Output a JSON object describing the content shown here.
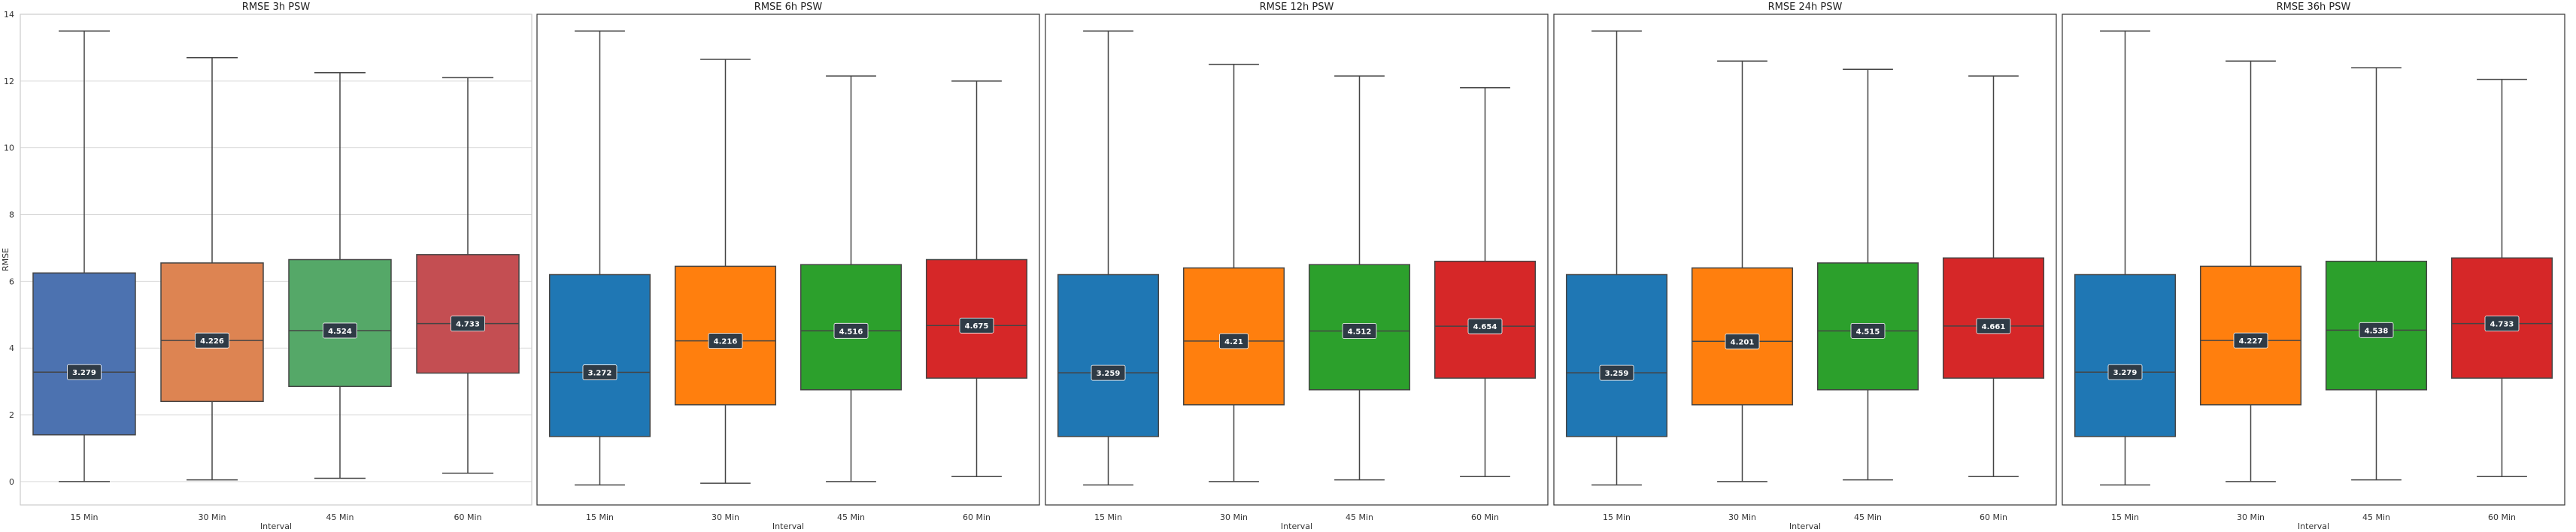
{
  "chart_data": [
    {
      "type": "boxplot",
      "title": "RMSE 3h PSW",
      "xlabel": "Interval",
      "ylabel": "RMSE",
      "ylim": [
        -0.7,
        14.0
      ],
      "yticks": [
        "0",
        "2",
        "4",
        "6",
        "8",
        "10",
        "12",
        "14"
      ],
      "categories": [
        "15 Min",
        "30 Min",
        "45 Min",
        "60 Min"
      ],
      "colors": [
        "#4c72b0",
        "#dd8452",
        "#55a868",
        "#c44e52"
      ],
      "boxes": [
        {
          "whislo": 0.0,
          "q1": 1.4,
          "med": 3.279,
          "q3": 6.25,
          "whishi": 13.5,
          "label": "3.279"
        },
        {
          "whislo": 0.05,
          "q1": 2.4,
          "med": 4.226,
          "q3": 6.55,
          "whishi": 12.7,
          "label": "4.226"
        },
        {
          "whislo": 0.1,
          "q1": 2.85,
          "med": 4.524,
          "q3": 6.65,
          "whishi": 12.25,
          "label": "4.524"
        },
        {
          "whislo": 0.25,
          "q1": 3.25,
          "med": 4.733,
          "q3": 6.8,
          "whishi": 12.1,
          "label": "4.733"
        }
      ]
    },
    {
      "type": "boxplot",
      "title": "RMSE 6h PSW",
      "xlabel": "Interval",
      "ylabel": "",
      "ylim": [
        -0.7,
        14.0
      ],
      "yticks": [],
      "categories": [
        "15 Min",
        "30 Min",
        "45 Min",
        "60 Min"
      ],
      "colors": [
        "#1f77b4",
        "#ff7f0e",
        "#2ca02c",
        "#d62728"
      ],
      "boxes": [
        {
          "whislo": -0.1,
          "q1": 1.35,
          "med": 3.272,
          "q3": 6.2,
          "whishi": 13.5,
          "label": "3.272"
        },
        {
          "whislo": -0.05,
          "q1": 2.3,
          "med": 4.216,
          "q3": 6.45,
          "whishi": 12.65,
          "label": "4.216"
        },
        {
          "whislo": 0.0,
          "q1": 2.75,
          "med": 4.516,
          "q3": 6.5,
          "whishi": 12.15,
          "label": "4.516"
        },
        {
          "whislo": 0.15,
          "q1": 3.1,
          "med": 4.675,
          "q3": 6.65,
          "whishi": 12.0,
          "label": "4.675"
        }
      ]
    },
    {
      "type": "boxplot",
      "title": "RMSE 12h PSW",
      "xlabel": "Interval",
      "ylabel": "",
      "ylim": [
        -0.7,
        14.0
      ],
      "yticks": [],
      "categories": [
        "15 Min",
        "30 Min",
        "45 Min",
        "60 Min"
      ],
      "colors": [
        "#1f77b4",
        "#ff7f0e",
        "#2ca02c",
        "#d62728"
      ],
      "boxes": [
        {
          "whislo": -0.1,
          "q1": 1.35,
          "med": 3.259,
          "q3": 6.2,
          "whishi": 13.5,
          "label": "3.259"
        },
        {
          "whislo": 0.0,
          "q1": 2.3,
          "med": 4.21,
          "q3": 6.4,
          "whishi": 12.5,
          "label": "4.21"
        },
        {
          "whislo": 0.05,
          "q1": 2.75,
          "med": 4.512,
          "q3": 6.5,
          "whishi": 12.15,
          "label": "4.512"
        },
        {
          "whislo": 0.15,
          "q1": 3.1,
          "med": 4.654,
          "q3": 6.6,
          "whishi": 11.8,
          "label": "4.654"
        }
      ]
    },
    {
      "type": "boxplot",
      "title": "RMSE 24h PSW",
      "xlabel": "Interval",
      "ylabel": "",
      "ylim": [
        -0.7,
        14.0
      ],
      "yticks": [],
      "categories": [
        "15 Min",
        "30 Min",
        "45 Min",
        "60 Min"
      ],
      "colors": [
        "#1f77b4",
        "#ff7f0e",
        "#2ca02c",
        "#d62728"
      ],
      "boxes": [
        {
          "whislo": -0.1,
          "q1": 1.35,
          "med": 3.259,
          "q3": 6.2,
          "whishi": 13.5,
          "label": "3.259"
        },
        {
          "whislo": 0.0,
          "q1": 2.3,
          "med": 4.201,
          "q3": 6.4,
          "whishi": 12.6,
          "label": "4.201"
        },
        {
          "whislo": 0.05,
          "q1": 2.75,
          "med": 4.515,
          "q3": 6.55,
          "whishi": 12.35,
          "label": "4.515"
        },
        {
          "whislo": 0.15,
          "q1": 3.1,
          "med": 4.661,
          "q3": 6.7,
          "whishi": 12.15,
          "label": "4.661"
        }
      ]
    },
    {
      "type": "boxplot",
      "title": "RMSE 36h PSW",
      "xlabel": "Interval",
      "ylabel": "",
      "ylim": [
        -0.7,
        14.0
      ],
      "yticks": [],
      "categories": [
        "15 Min",
        "30 Min",
        "45 Min",
        "60 Min"
      ],
      "colors": [
        "#1f77b4",
        "#ff7f0e",
        "#2ca02c",
        "#d62728"
      ],
      "boxes": [
        {
          "whislo": -0.1,
          "q1": 1.35,
          "med": 3.279,
          "q3": 6.2,
          "whishi": 13.5,
          "label": "3.279"
        },
        {
          "whislo": 0.0,
          "q1": 2.3,
          "med": 4.227,
          "q3": 6.45,
          "whishi": 12.6,
          "label": "4.227"
        },
        {
          "whislo": 0.05,
          "q1": 2.75,
          "med": 4.538,
          "q3": 6.6,
          "whishi": 12.4,
          "label": "4.538"
        },
        {
          "whislo": 0.15,
          "q1": 3.1,
          "med": 4.733,
          "q3": 6.7,
          "whishi": 12.05,
          "label": "4.733"
        }
      ]
    }
  ]
}
